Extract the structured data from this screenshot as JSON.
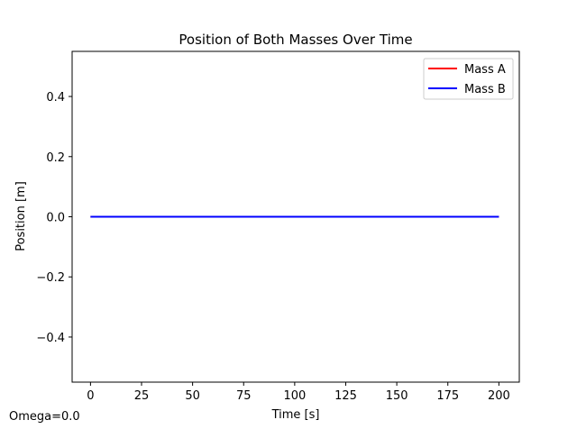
{
  "chart_data": {
    "type": "line",
    "title": "Position of Both Masses Over Time",
    "xlabel": "Time [s]",
    "ylabel": "Position [m]",
    "xlim": [
      -9,
      210
    ],
    "ylim": [
      -0.55,
      0.55
    ],
    "xticks": [
      0,
      25,
      50,
      75,
      100,
      125,
      150,
      175,
      200
    ],
    "yticks": [
      -0.4,
      -0.2,
      0.0,
      0.2,
      0.4
    ],
    "xtick_labels": [
      "0",
      "25",
      "50",
      "75",
      "100",
      "125",
      "150",
      "175",
      "200"
    ],
    "ytick_labels": [
      "−0.4",
      "−0.2",
      "0.0",
      "0.2",
      "0.4"
    ],
    "grid": false,
    "legend_position": "top-right",
    "series": [
      {
        "name": "Mass A",
        "color": "#ff0000",
        "x": [
          0,
          200
        ],
        "y": [
          0,
          0
        ]
      },
      {
        "name": "Mass B",
        "color": "#0000ff",
        "x": [
          0,
          200
        ],
        "y": [
          0,
          0
        ]
      }
    ],
    "annotation": "Omega=0.0"
  }
}
